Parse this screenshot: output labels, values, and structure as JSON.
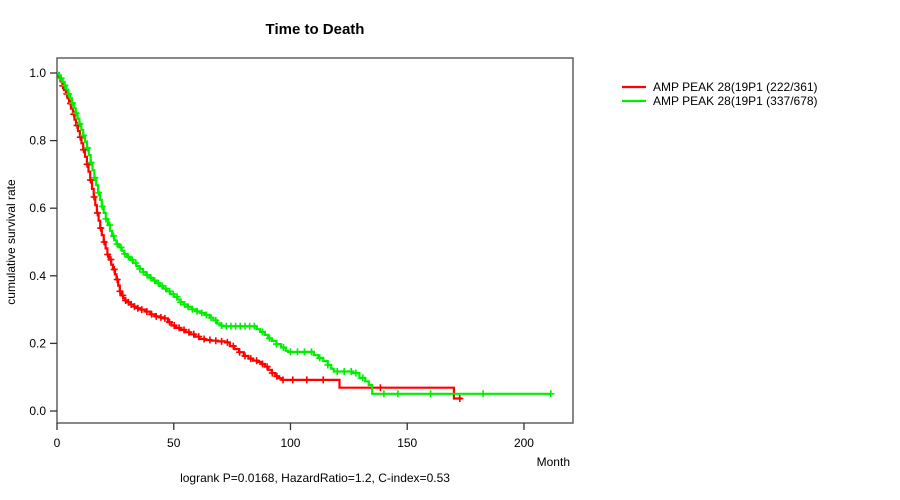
{
  "title": "Time to Death",
  "y_axis_label": "cumulative survival rate",
  "x_axis_label": "Month",
  "footer_annotation": "logrank P=0.0168, HazardRatio=1.2, C-index=0.53",
  "legend": {
    "items": [
      {
        "label": "AMP PEAK 28(19P1 (222/361)",
        "color": "#ff0000"
      },
      {
        "label": "AMP PEAK 28(19P1 (337/678)",
        "color": "#00ee00"
      }
    ]
  },
  "chart_data": {
    "type": "line",
    "subtype": "kaplan-meier-step",
    "title": "Time to Death",
    "xlabel": "Month",
    "ylabel": "cumulative survival rate",
    "xlim": [
      0,
      221
    ],
    "ylim": [
      0,
      1.0
    ],
    "x_ticks": [
      0,
      50,
      100,
      150,
      200
    ],
    "y_ticks": [
      0.0,
      0.2,
      0.4,
      0.6,
      0.8,
      1.0
    ],
    "grid": false,
    "legend_position": "top-right-outside",
    "annotation": "logrank P=0.0168, HazardRatio=1.2, C-index=0.53",
    "series": [
      {
        "name": "AMP PEAK 28(19P1 (222/361)",
        "color": "#ff0000",
        "events_over_n": "222/361",
        "points": [
          [
            0,
            1.0
          ],
          [
            0.7,
            0.99
          ],
          [
            1.5,
            0.975
          ],
          [
            2.3,
            0.962
          ],
          [
            3,
            0.95
          ],
          [
            3.8,
            0.938
          ],
          [
            4.5,
            0.925
          ],
          [
            5.2,
            0.91
          ],
          [
            6,
            0.895
          ],
          [
            6.8,
            0.878
          ],
          [
            7.5,
            0.862
          ],
          [
            8.2,
            0.845
          ],
          [
            9,
            0.828
          ],
          [
            9.8,
            0.81
          ],
          [
            10.5,
            0.792
          ],
          [
            11.2,
            0.773
          ],
          [
            12,
            0.752
          ],
          [
            12.8,
            0.73
          ],
          [
            13.5,
            0.708
          ],
          [
            14.2,
            0.683
          ],
          [
            15,
            0.657
          ],
          [
            15.7,
            0.633
          ],
          [
            16.4,
            0.609
          ],
          [
            17.1,
            0.586
          ],
          [
            17.8,
            0.563
          ],
          [
            18.5,
            0.541
          ],
          [
            19.2,
            0.52
          ],
          [
            20,
            0.5
          ],
          [
            20.8,
            0.481
          ],
          [
            21.6,
            0.463
          ],
          [
            22.4,
            0.448
          ],
          [
            23.2,
            0.433
          ],
          [
            24,
            0.419
          ],
          [
            24.8,
            0.404
          ],
          [
            25.5,
            0.389
          ],
          [
            26.2,
            0.371
          ],
          [
            26.9,
            0.354
          ],
          [
            27.6,
            0.342
          ],
          [
            28.4,
            0.333
          ],
          [
            29.2,
            0.327
          ],
          [
            30,
            0.322
          ],
          [
            31.5,
            0.315
          ],
          [
            33,
            0.309
          ],
          [
            34.5,
            0.304
          ],
          [
            36,
            0.3
          ],
          [
            38,
            0.294
          ],
          [
            40,
            0.286
          ],
          [
            42,
            0.28
          ],
          [
            44,
            0.277
          ],
          [
            46,
            0.274
          ],
          [
            47.5,
            0.263
          ],
          [
            49,
            0.253
          ],
          [
            51,
            0.246
          ],
          [
            53,
            0.24
          ],
          [
            55,
            0.233
          ],
          [
            57,
            0.227
          ],
          [
            59,
            0.22
          ],
          [
            61,
            0.213
          ],
          [
            63.5,
            0.21
          ],
          [
            66,
            0.208
          ],
          [
            69,
            0.206
          ],
          [
            72,
            0.203
          ],
          [
            74,
            0.192
          ],
          [
            76,
            0.183
          ],
          [
            78,
            0.174
          ],
          [
            80,
            0.163
          ],
          [
            82,
            0.155
          ],
          [
            84,
            0.149
          ],
          [
            86,
            0.145
          ],
          [
            87.5,
            0.139
          ],
          [
            89,
            0.131
          ],
          [
            90.5,
            0.122
          ],
          [
            92,
            0.112
          ],
          [
            93.5,
            0.103
          ],
          [
            95,
            0.097
          ],
          [
            96.5,
            0.092
          ],
          [
            120.5,
            0.092
          ],
          [
            121,
            0.069
          ],
          [
            169.5,
            0.069
          ],
          [
            170,
            0.037
          ],
          [
            173.5,
            0.037
          ]
        ],
        "censor_times": [
          2.5,
          4.2,
          5.8,
          7.2,
          8.6,
          10,
          11.4,
          12.9,
          14.4,
          15.9,
          17.3,
          18.7,
          20.2,
          21.7,
          23.1,
          24.5,
          25.8,
          27,
          28.2,
          29.4,
          30.6,
          31.8,
          33.2,
          34.6,
          36.3,
          38.5,
          40.5,
          42.5,
          44.5,
          46.2,
          48.2,
          50.2,
          52.3,
          54.4,
          56.5,
          58.6,
          60.7,
          63,
          65.5,
          68,
          70.5,
          73,
          75.5,
          78.2,
          80.5,
          83,
          85.5,
          88,
          90,
          92.2,
          94.2,
          96.8,
          101,
          107,
          114,
          138.5,
          172.5
        ]
      },
      {
        "name": "AMP PEAK 28(19P1 (337/678)",
        "color": "#00ee00",
        "events_over_n": "337/678",
        "points": [
          [
            0,
            1.0
          ],
          [
            0.8,
            0.993
          ],
          [
            1.6,
            0.984
          ],
          [
            2.4,
            0.974
          ],
          [
            3.2,
            0.963
          ],
          [
            4,
            0.951
          ],
          [
            4.8,
            0.938
          ],
          [
            5.6,
            0.925
          ],
          [
            6.4,
            0.911
          ],
          [
            7.2,
            0.896
          ],
          [
            8,
            0.881
          ],
          [
            8.8,
            0.865
          ],
          [
            9.6,
            0.849
          ],
          [
            10.4,
            0.832
          ],
          [
            11.2,
            0.815
          ],
          [
            12,
            0.797
          ],
          [
            12.8,
            0.778
          ],
          [
            13.6,
            0.757
          ],
          [
            14.4,
            0.735
          ],
          [
            15.2,
            0.712
          ],
          [
            16,
            0.69
          ],
          [
            16.8,
            0.668
          ],
          [
            17.6,
            0.646
          ],
          [
            18.4,
            0.625
          ],
          [
            19.2,
            0.605
          ],
          [
            20,
            0.586
          ],
          [
            20.9,
            0.568
          ],
          [
            21.8,
            0.55
          ],
          [
            22.7,
            0.533
          ],
          [
            23.6,
            0.518
          ],
          [
            24.5,
            0.505
          ],
          [
            25.5,
            0.494
          ],
          [
            26.6,
            0.484
          ],
          [
            27.7,
            0.474
          ],
          [
            28.8,
            0.465
          ],
          [
            30,
            0.456
          ],
          [
            31.3,
            0.447
          ],
          [
            32.6,
            0.438
          ],
          [
            34,
            0.429
          ],
          [
            35.4,
            0.42
          ],
          [
            36.8,
            0.411
          ],
          [
            38.2,
            0.402
          ],
          [
            39.6,
            0.394
          ],
          [
            41,
            0.386
          ],
          [
            42.5,
            0.378
          ],
          [
            44,
            0.37
          ],
          [
            45.5,
            0.362
          ],
          [
            47,
            0.354
          ],
          [
            48.5,
            0.346
          ],
          [
            50,
            0.338
          ],
          [
            51.5,
            0.33
          ],
          [
            53,
            0.322
          ],
          [
            54.5,
            0.315
          ],
          [
            56,
            0.308
          ],
          [
            57.8,
            0.301
          ],
          [
            59.6,
            0.295
          ],
          [
            61.5,
            0.29
          ],
          [
            63.5,
            0.284
          ],
          [
            65.5,
            0.276
          ],
          [
            67,
            0.268
          ],
          [
            68.5,
            0.259
          ],
          [
            70,
            0.253
          ],
          [
            71,
            0.251
          ],
          [
            85.5,
            0.242
          ],
          [
            87,
            0.234
          ],
          [
            89,
            0.225
          ],
          [
            90.5,
            0.215
          ],
          [
            92,
            0.207
          ],
          [
            94,
            0.198
          ],
          [
            96,
            0.188
          ],
          [
            98,
            0.178
          ],
          [
            99,
            0.175
          ],
          [
            110,
            0.165
          ],
          [
            112,
            0.157
          ],
          [
            114,
            0.148
          ],
          [
            116,
            0.136
          ],
          [
            117.5,
            0.125
          ],
          [
            118.5,
            0.117
          ],
          [
            126.5,
            0.112
          ],
          [
            129.5,
            0.098
          ],
          [
            132,
            0.088
          ],
          [
            133.5,
            0.077
          ],
          [
            135,
            0.051
          ],
          [
            211.5,
            0.051
          ]
        ],
        "censor_times": [
          1.8,
          3.4,
          5,
          6.6,
          8.2,
          9.8,
          11.4,
          13,
          14.6,
          16.2,
          17.8,
          19.4,
          21,
          22.6,
          24.2,
          25.8,
          27.4,
          29,
          30.6,
          32.2,
          33.8,
          35.4,
          37,
          38.6,
          40.2,
          41.8,
          43.4,
          45,
          46.6,
          48.2,
          49.8,
          51.4,
          53,
          54.6,
          56.2,
          58,
          60,
          62,
          64,
          66,
          68,
          70.5,
          72.5,
          74.5,
          76.5,
          78.5,
          80.5,
          82.5,
          84.5,
          88,
          91,
          94,
          97,
          100,
          103,
          106,
          109,
          112.5,
          116,
          120,
          123,
          126,
          128,
          131,
          140,
          146,
          160,
          182.5,
          211.5
        ]
      }
    ]
  }
}
